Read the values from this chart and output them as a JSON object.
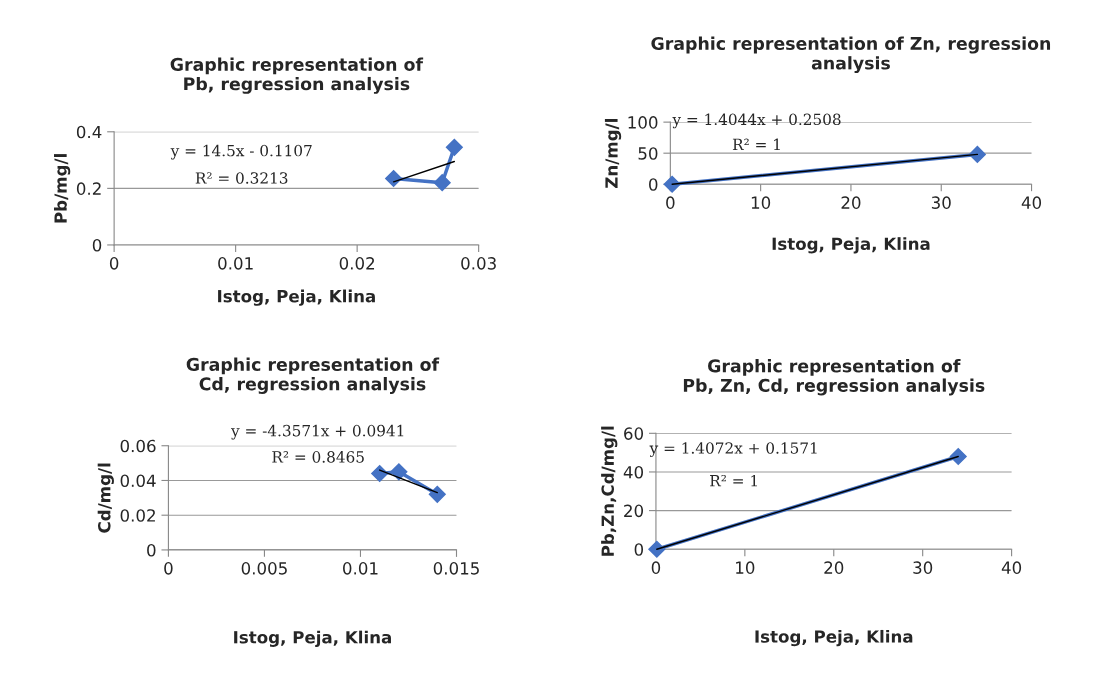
{
  "chart_data": [
    {
      "type": "line",
      "title": "Graphic representation of\nPb, regression analysis",
      "xlabel": "Istog, Peja, Klina",
      "ylabel": "Pb/mg/l",
      "xlim": [
        0,
        0.03
      ],
      "xticks": [
        0,
        0.01,
        0.02,
        0.03
      ],
      "ylim": [
        0,
        0.4
      ],
      "yticks": [
        0,
        0.2,
        0.4
      ],
      "grid": "y",
      "legend": false,
      "series": [
        {
          "color": "#4472c4",
          "marker": "diamond",
          "x": [
            0.023,
            0.027,
            0.028
          ],
          "values": [
            0.235,
            0.22,
            0.345
          ]
        },
        {
          "color": "#000000",
          "marker": "none",
          "x": [
            0.023,
            0.028
          ],
          "values": [
            0.223,
            0.295
          ]
        }
      ],
      "annotations": [
        "y = 14.5x - 0.1107",
        "R² = 0.3213"
      ]
    },
    {
      "type": "line",
      "title": "Graphic representation of Zn, regression\nanalysis",
      "xlabel": "Istog, Peja, Klina",
      "ylabel": "Zn/mg/l",
      "xlim": [
        0,
        40
      ],
      "xticks": [
        0,
        10,
        20,
        30,
        40
      ],
      "ylim": [
        0,
        100
      ],
      "yticks": [
        0,
        50,
        100
      ],
      "grid": "y",
      "legend": false,
      "series": [
        {
          "color": "#4472c4",
          "marker": "diamond",
          "x": [
            0.2,
            34
          ],
          "values": [
            0,
            48
          ]
        },
        {
          "color": "#000000",
          "marker": "none",
          "x": [
            0.2,
            34
          ],
          "values": [
            0,
            48
          ]
        }
      ],
      "annotations": [
        "y = 1.4044x + 0.2508",
        "R² = 1"
      ]
    },
    {
      "type": "line",
      "title": "Graphic representation of\nCd, regression analysis",
      "xlabel": "Istog, Peja, Klina",
      "ylabel": "Cd/mg/l",
      "xlim": [
        0,
        0.015
      ],
      "xticks": [
        0,
        0.005,
        0.01,
        0.015
      ],
      "ylim": [
        0,
        0.06
      ],
      "yticks": [
        0,
        0.02,
        0.04,
        0.06
      ],
      "grid": "y",
      "legend": false,
      "series": [
        {
          "color": "#4472c4",
          "marker": "diamond",
          "x": [
            0.011,
            0.012,
            0.014
          ],
          "values": [
            0.044,
            0.045,
            0.032
          ]
        },
        {
          "color": "#000000",
          "marker": "none",
          "x": [
            0.011,
            0.014
          ],
          "values": [
            0.046,
            0.033
          ]
        }
      ],
      "annotations": [
        "y = -4.3571x + 0.0941",
        "R² = 0.8465"
      ]
    },
    {
      "type": "line",
      "title": "Graphic representation of\nPb, Zn, Cd, regression analysis",
      "xlabel": "Istog, Peja, Klina",
      "ylabel": "Pb,Zn,Cd/mg/l",
      "xlim": [
        0,
        40
      ],
      "xticks": [
        0,
        10,
        20,
        30,
        40
      ],
      "ylim": [
        0,
        60
      ],
      "yticks": [
        0,
        20,
        40,
        60
      ],
      "grid": "y",
      "legend": false,
      "series": [
        {
          "color": "#4472c4",
          "marker": "diamond",
          "x": [
            0.1,
            34
          ],
          "values": [
            0,
            48
          ]
        },
        {
          "color": "#000000",
          "marker": "none",
          "x": [
            0.1,
            34
          ],
          "values": [
            0,
            48
          ]
        }
      ],
      "annotations": [
        "y = 1.4072x + 0.1571",
        "R² = 1"
      ]
    }
  ]
}
